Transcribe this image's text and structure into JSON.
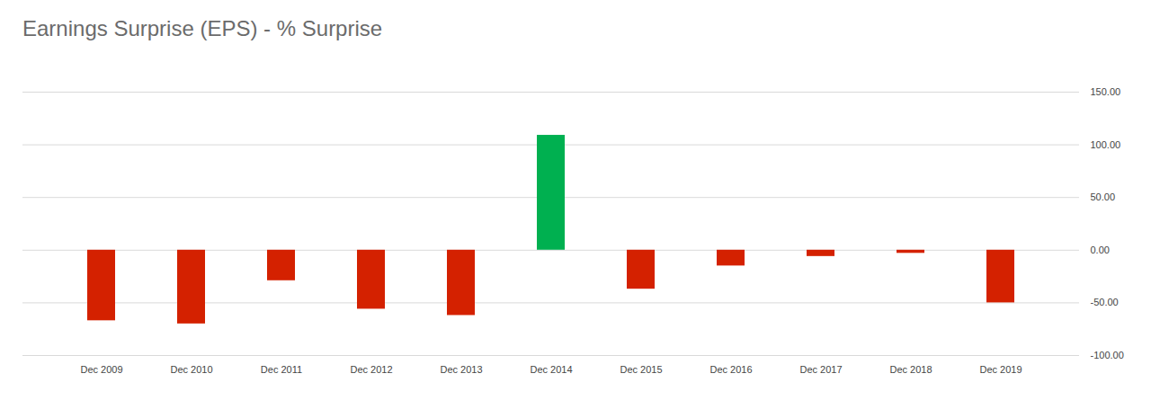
{
  "chart_data": {
    "type": "bar",
    "title": "Earnings Surprise (EPS) - % Surprise",
    "categories": [
      "Dec 2009",
      "Dec 2010",
      "Dec 2011",
      "Dec 2012",
      "Dec 2013",
      "Dec 2014",
      "Dec 2015",
      "Dec 2016",
      "Dec 2017",
      "Dec 2018",
      "Dec 2019"
    ],
    "values": [
      -67,
      -70,
      -29,
      -56,
      -62,
      109,
      -37,
      -15,
      -6,
      -3,
      -50
    ],
    "colors": [
      "#d42100",
      "#d42100",
      "#d42100",
      "#d42100",
      "#d42100",
      "#00b050",
      "#d42100",
      "#d42100",
      "#d42100",
      "#d42100",
      "#d42100"
    ],
    "ylim": [
      -100,
      150
    ],
    "yticks": [
      {
        "value": -100,
        "label": "-100.00"
      },
      {
        "value": -50,
        "label": "-50.00"
      },
      {
        "value": 0,
        "label": "0.00"
      },
      {
        "value": 50,
        "label": "50.00"
      },
      {
        "value": 100,
        "label": "100.00"
      },
      {
        "value": 150,
        "label": "150.00"
      }
    ],
    "grid": true
  }
}
